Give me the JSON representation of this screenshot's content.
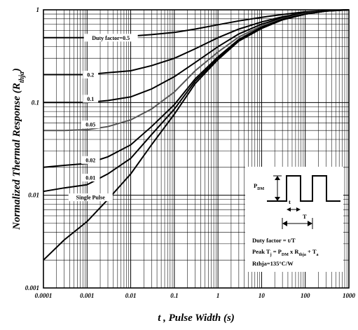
{
  "chart_data": {
    "type": "line",
    "title": "",
    "xlabel": "t , Pulse Width (s)",
    "ylabel": "Normalized Thermal Response (R",
    "ylabel_sub": "thja",
    "ylabel_suffix": ")",
    "xscale": "log",
    "yscale": "log",
    "xlim": [
      0.0001,
      1000
    ],
    "ylim": [
      0.001,
      1
    ],
    "grid": true,
    "x_tick_labels": [
      "0.0001",
      "0.001",
      "0.01",
      "0.1",
      "1",
      "10",
      "100",
      "1000"
    ],
    "y_tick_labels": [
      "0.001",
      "0.01",
      "0.1",
      "1"
    ],
    "series_x": [
      0.0001,
      0.0003,
      0.001,
      0.003,
      0.01,
      0.03,
      0.1,
      0.3,
      1,
      3,
      10,
      30,
      100,
      300,
      1000
    ],
    "series": [
      {
        "name": "Duty factor=0.5",
        "label_pos": [
          0.0035,
          0.5
        ],
        "color": "#000000",
        "values": [
          0.5,
          0.5,
          0.5,
          0.51,
          0.52,
          0.54,
          0.57,
          0.62,
          0.69,
          0.76,
          0.83,
          0.89,
          0.95,
          0.98,
          1.0
        ]
      },
      {
        "name": "0.2",
        "label_pos": [
          0.0012,
          0.2
        ],
        "color": "#000000",
        "values": [
          0.2,
          0.2,
          0.2,
          0.21,
          0.22,
          0.25,
          0.3,
          0.38,
          0.5,
          0.62,
          0.74,
          0.84,
          0.93,
          0.98,
          1.0
        ]
      },
      {
        "name": "0.1",
        "label_pos": [
          0.0012,
          0.11
        ],
        "color": "#000000",
        "values": [
          0.1,
          0.1,
          0.1,
          0.105,
          0.115,
          0.14,
          0.19,
          0.27,
          0.4,
          0.55,
          0.7,
          0.82,
          0.92,
          0.98,
          1.0
        ]
      },
      {
        "name": "0.05",
        "label_pos": [
          0.0012,
          0.058
        ],
        "color": "#555555",
        "values": [
          0.05,
          0.05,
          0.051,
          0.055,
          0.065,
          0.085,
          0.13,
          0.22,
          0.35,
          0.51,
          0.67,
          0.8,
          0.91,
          0.97,
          1.0
        ]
      },
      {
        "name": "0.02",
        "label_pos": [
          0.0012,
          0.024
        ],
        "color": "#000000",
        "values": [
          0.02,
          0.021,
          0.022,
          0.026,
          0.035,
          0.055,
          0.095,
          0.18,
          0.31,
          0.48,
          0.65,
          0.79,
          0.9,
          0.97,
          1.0
        ]
      },
      {
        "name": "0.01",
        "label_pos": [
          0.0012,
          0.0155
        ],
        "color": "#000000",
        "values": [
          0.011,
          0.012,
          0.013,
          0.017,
          0.025,
          0.045,
          0.085,
          0.17,
          0.3,
          0.47,
          0.64,
          0.78,
          0.9,
          0.97,
          1.0
        ]
      },
      {
        "name": "Single Pulse",
        "label_pos": [
          0.0012,
          0.0095
        ],
        "color": "#000000",
        "values": [
          0.002,
          0.0033,
          0.0052,
          0.009,
          0.017,
          0.035,
          0.075,
          0.16,
          0.29,
          0.46,
          0.63,
          0.78,
          0.9,
          0.97,
          1.0
        ]
      }
    ],
    "inset": {
      "pdm": "P",
      "pdm_sub": "DM",
      "t_label": "t",
      "T_label": "T",
      "line1": "Duty factor = t/T",
      "line2_parts": [
        "Peak T",
        "j",
        " = P",
        "DM",
        " x R",
        "thja",
        " + T",
        "a"
      ],
      "line3": "Rthja=135°C/W"
    }
  }
}
